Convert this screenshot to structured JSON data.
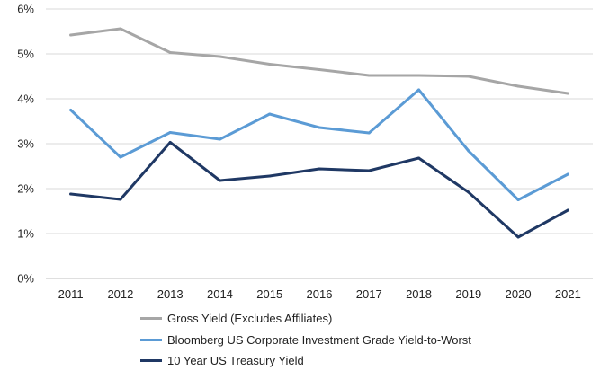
{
  "chart_data": {
    "type": "line",
    "title": "",
    "xlabel": "",
    "ylabel": "",
    "x": [
      "2011",
      "2012",
      "2013",
      "2014",
      "2015",
      "2016",
      "2017",
      "2018",
      "2019",
      "2020",
      "2021"
    ],
    "ylim": [
      0,
      6
    ],
    "yticks": [
      "0%",
      "1%",
      "2%",
      "3%",
      "4%",
      "5%",
      "6%"
    ],
    "grid": true,
    "legend_position": "bottom",
    "series": [
      {
        "name": "Gross Yield (Excludes Affiliates)",
        "color": "#a6a6a6",
        "values": [
          5.42,
          5.56,
          5.03,
          4.94,
          4.77,
          4.65,
          4.52,
          4.52,
          4.5,
          4.28,
          4.12
        ]
      },
      {
        "name": "Bloomberg US Corporate Investment Grade Yield-to-Worst",
        "color": "#5b9bd5",
        "values": [
          3.75,
          2.7,
          3.25,
          3.1,
          3.66,
          3.36,
          3.24,
          4.2,
          2.84,
          1.75,
          2.32
        ]
      },
      {
        "name": "10 Year US Treasury Yield",
        "color": "#1f3864",
        "values": [
          1.88,
          1.76,
          3.03,
          2.18,
          2.28,
          2.44,
          2.4,
          2.68,
          1.92,
          0.92,
          1.52
        ]
      }
    ]
  }
}
